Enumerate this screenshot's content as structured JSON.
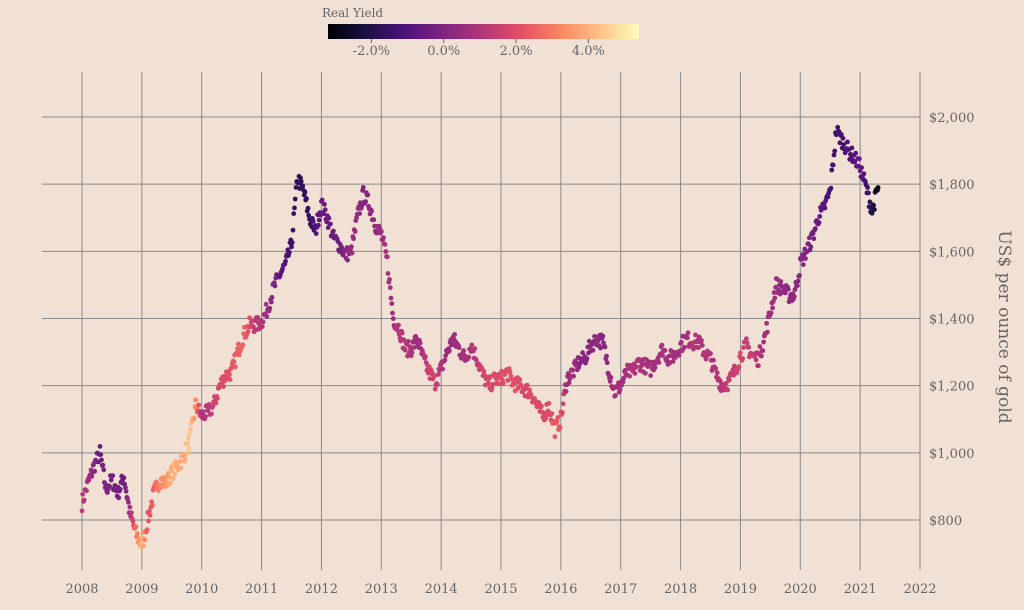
{
  "chart_data": {
    "type": "scatter",
    "title": "",
    "xlabel": "",
    "ylabel": "US$ per ounce of gold",
    "xlim": [
      2008,
      2022
    ],
    "ylim": [
      650,
      2120
    ],
    "x_ticks": [
      "2008",
      "2009",
      "2010",
      "2011",
      "2012",
      "2013",
      "2014",
      "2015",
      "2016",
      "2017",
      "2018",
      "2019",
      "2020",
      "2021",
      "2022"
    ],
    "y_ticks": [
      "$800",
      "$1,000",
      "$1,200",
      "$1,400",
      "$1,600",
      "$1,800",
      "$2,000"
    ],
    "grid": true,
    "colorbar": {
      "title": "Real Yield",
      "range": [
        -3.2,
        5.4
      ],
      "ticks": [
        "-2.0%",
        "0.0%",
        "2.0%",
        "4.0%"
      ],
      "tick_values": [
        -2.0,
        0.0,
        2.0,
        4.0
      ],
      "colormap": "magma",
      "colors": [
        "#000004",
        "#1c1044",
        "#4f127b",
        "#812581",
        "#b5367a",
        "#e55064",
        "#fb8761",
        "#fec287",
        "#fcfdbf"
      ]
    },
    "series": [
      {
        "x_date": [
          2008.0,
          2008.1,
          2008.2,
          2008.3,
          2008.4,
          2008.5,
          2008.6,
          2008.7,
          2008.8,
          2008.9,
          2009.0,
          2009.1,
          2009.2,
          2009.3,
          2009.4,
          2009.5,
          2009.6,
          2009.7,
          2009.8,
          2009.9,
          2010.0,
          2010.1,
          2010.2,
          2010.3,
          2010.4,
          2010.5,
          2010.6,
          2010.7,
          2010.8,
          2010.9,
          2011.0,
          2011.1,
          2011.2,
          2011.3,
          2011.4,
          2011.5,
          2011.6,
          2011.7,
          2011.8,
          2011.9,
          2012.0,
          2012.1,
          2012.2,
          2012.3,
          2012.4,
          2012.5,
          2012.6,
          2012.7,
          2012.8,
          2012.9,
          2013.0,
          2013.1,
          2013.2,
          2013.3,
          2013.4,
          2013.5,
          2013.6,
          2013.7,
          2013.8,
          2013.9,
          2014.0,
          2014.1,
          2014.2,
          2014.3,
          2014.4,
          2014.5,
          2014.6,
          2014.7,
          2014.8,
          2014.9,
          2015.0,
          2015.1,
          2015.2,
          2015.3,
          2015.4,
          2015.5,
          2015.6,
          2015.7,
          2015.8,
          2015.9,
          2016.0,
          2016.1,
          2016.2,
          2016.3,
          2016.4,
          2016.5,
          2016.6,
          2016.7,
          2016.8,
          2016.9,
          2017.0,
          2017.1,
          2017.2,
          2017.3,
          2017.4,
          2017.5,
          2017.6,
          2017.7,
          2017.8,
          2017.9,
          2018.0,
          2018.1,
          2018.2,
          2018.3,
          2018.4,
          2018.5,
          2018.6,
          2018.7,
          2018.8,
          2018.9,
          2019.0,
          2019.1,
          2019.2,
          2019.3,
          2019.4,
          2019.5,
          2019.6,
          2019.7,
          2019.8,
          2019.9,
          2020.0,
          2020.1,
          2020.2,
          2020.3,
          2020.4,
          2020.5,
          2020.6,
          2020.7,
          2020.8,
          2020.9,
          2021.0,
          2021.1,
          2021.2,
          2021.3
        ],
        "price": [
          850,
          910,
          960,
          1000,
          890,
          920,
          880,
          930,
          820,
          760,
          720,
          800,
          880,
          920,
          910,
          940,
          960,
          990,
          1040,
          1140,
          1110,
          1120,
          1140,
          1200,
          1230,
          1240,
          1300,
          1350,
          1380,
          1380,
          1390,
          1430,
          1490,
          1530,
          1560,
          1620,
          1820,
          1780,
          1700,
          1660,
          1740,
          1700,
          1640,
          1620,
          1590,
          1600,
          1700,
          1770,
          1740,
          1680,
          1650,
          1570,
          1400,
          1370,
          1310,
          1310,
          1340,
          1280,
          1240,
          1210,
          1250,
          1300,
          1340,
          1310,
          1280,
          1320,
          1280,
          1230,
          1200,
          1220,
          1220,
          1240,
          1210,
          1200,
          1190,
          1180,
          1140,
          1110,
          1140,
          1070,
          1100,
          1220,
          1240,
          1270,
          1280,
          1320,
          1340,
          1330,
          1250,
          1180,
          1200,
          1240,
          1240,
          1270,
          1260,
          1250,
          1280,
          1310,
          1280,
          1290,
          1320,
          1340,
          1330,
          1330,
          1300,
          1280,
          1230,
          1200,
          1210,
          1240,
          1290,
          1320,
          1290,
          1280,
          1340,
          1420,
          1500,
          1490,
          1470,
          1470,
          1560,
          1600,
          1640,
          1700,
          1730,
          1780,
          1960,
          1930,
          1900,
          1880,
          1850,
          1790,
          1720,
          1790
        ],
        "real_yield": [
          1.3,
          0.8,
          0.2,
          -0.5,
          0.0,
          -0.3,
          -0.2,
          -0.4,
          0.7,
          2.8,
          4.2,
          2.2,
          2.5,
          3.2,
          3.5,
          4.0,
          3.9,
          3.8,
          4.5,
          3.3,
          0.9,
          1.1,
          1.6,
          1.9,
          2.0,
          2.3,
          2.4,
          2.6,
          2.0,
          1.2,
          1.1,
          0.5,
          0.1,
          -0.7,
          -1.0,
          -1.4,
          -1.8,
          -1.7,
          -1.6,
          -1.1,
          -0.5,
          -0.5,
          -0.4,
          -0.4,
          0.0,
          0.5,
          0.5,
          0.0,
          0.3,
          0.3,
          0.6,
          0.8,
          0.6,
          1.2,
          1.1,
          0.9,
          0.5,
          0.9,
          1.7,
          1.6,
          1.0,
          0.5,
          0.5,
          0.6,
          0.8,
          0.9,
          1.3,
          1.8,
          1.8,
          1.9,
          2.0,
          2.0,
          2.2,
          2.0,
          1.8,
          2.0,
          1.9,
          1.9,
          2.0,
          2.3,
          2.3,
          0.6,
          0.7,
          0.2,
          0.0,
          0.2,
          0.3,
          0.1,
          0.4,
          0.8,
          0.7,
          0.8,
          1.0,
          1.0,
          0.8,
          0.7,
          0.7,
          0.8,
          0.8,
          0.7,
          0.7,
          0.7,
          1.1,
          0.9,
          1.0,
          1.1,
          1.0,
          1.1,
          1.5,
          1.4,
          1.9,
          1.4,
          1.6,
          1.0,
          0.7,
          0.7,
          0.6,
          0.3,
          0.3,
          0.3,
          0.1,
          0.0,
          -0.3,
          -0.5,
          -0.9,
          -1.2,
          -1.4,
          -1.3,
          -1.1,
          -0.9,
          -0.5,
          -1.3,
          -1.9,
          -3.0
        ]
      }
    ]
  }
}
